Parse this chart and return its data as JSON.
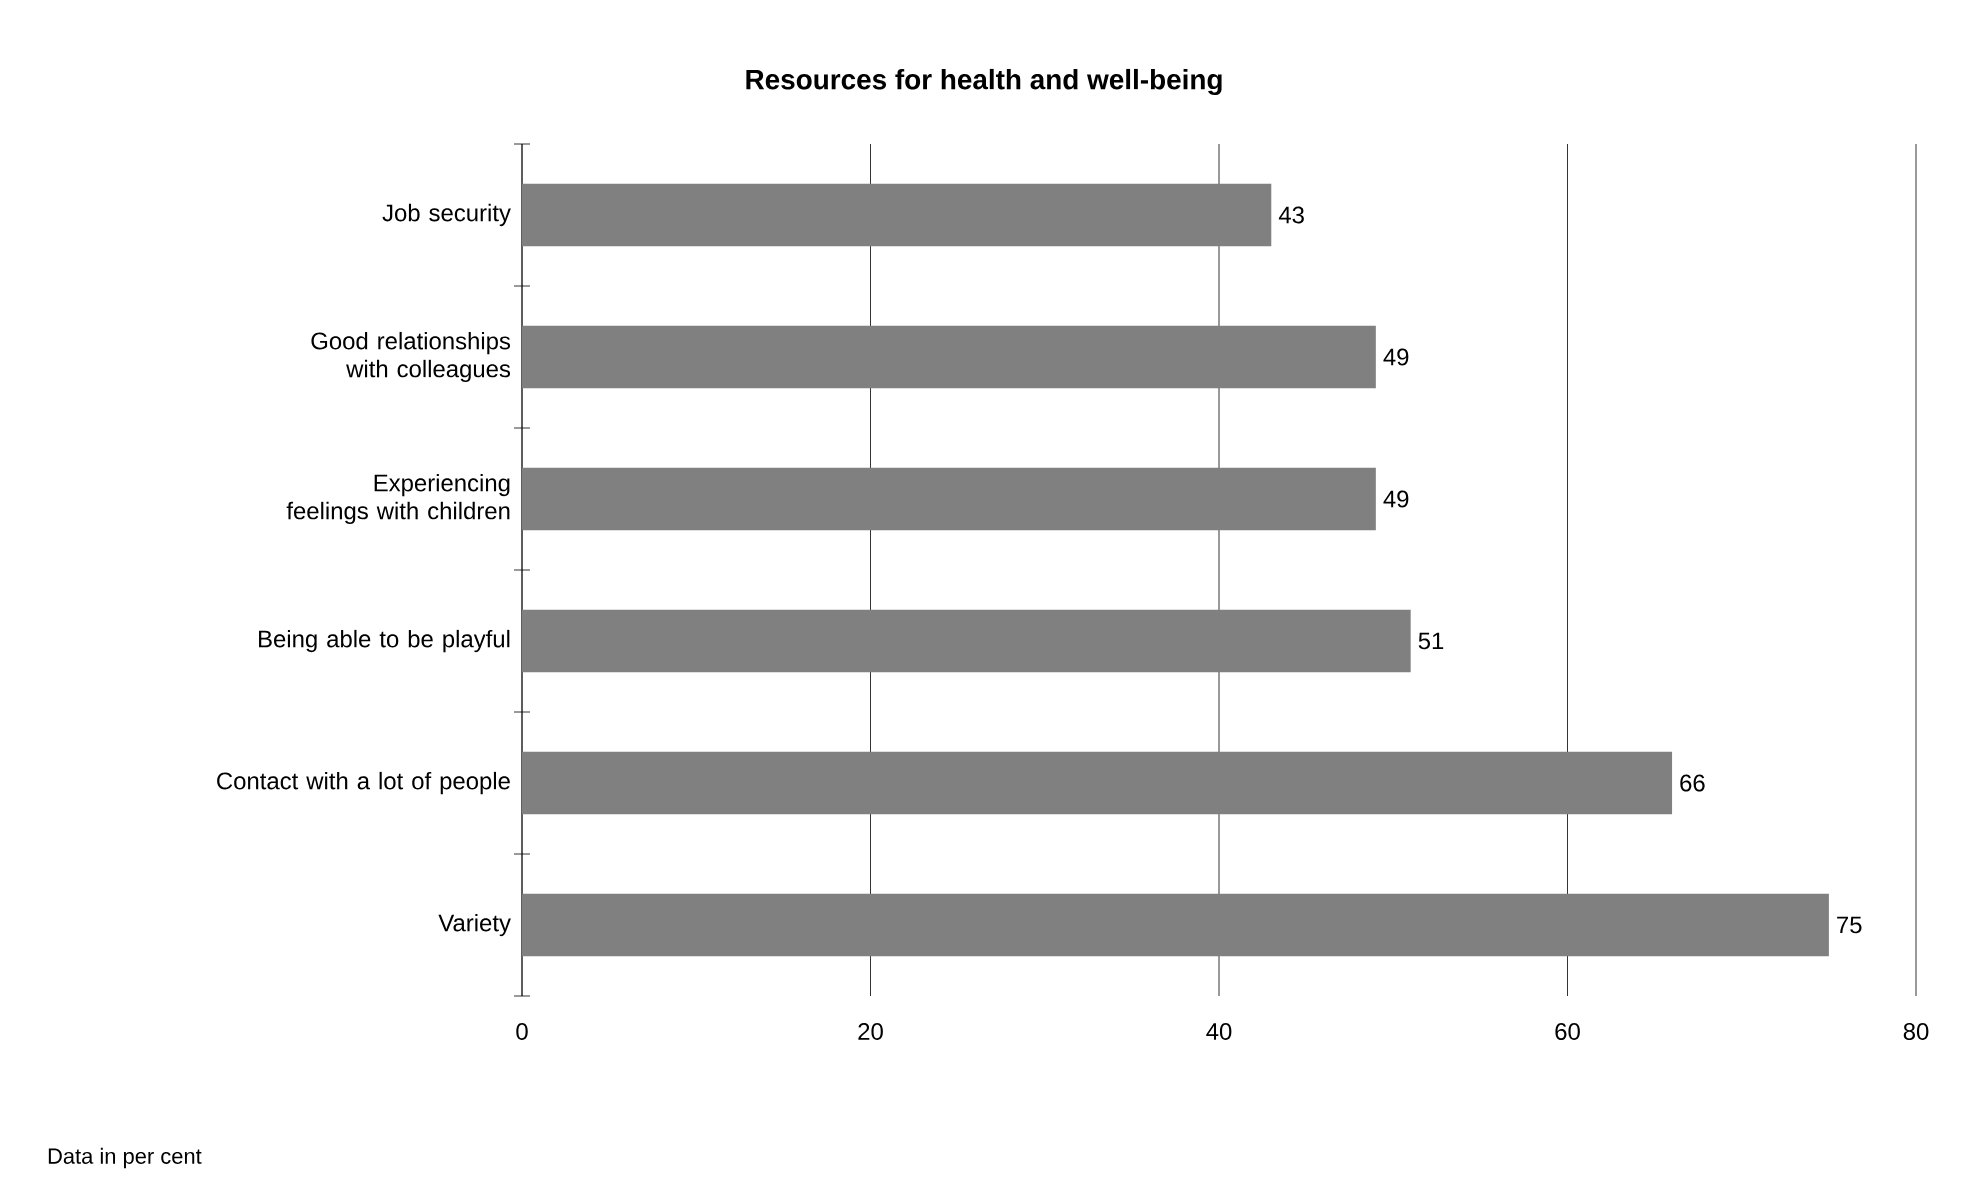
{
  "chart_data": {
    "type": "bar",
    "orientation": "horizontal",
    "title": "Resources for health and well-being",
    "categories": [
      "Job security",
      "Good relationships with colleagues",
      "Experiencing feelings with children",
      "Being able to be playful",
      "Contact with a lot of people",
      "Variety"
    ],
    "values": [
      43,
      49,
      49,
      51,
      66,
      75
    ],
    "color": "#808080",
    "data_labels": true,
    "xlim": [
      0,
      80
    ],
    "xticks": [
      0,
      20,
      40,
      60,
      80
    ],
    "grid": "x",
    "annotations": [
      "Data in per cent"
    ]
  }
}
